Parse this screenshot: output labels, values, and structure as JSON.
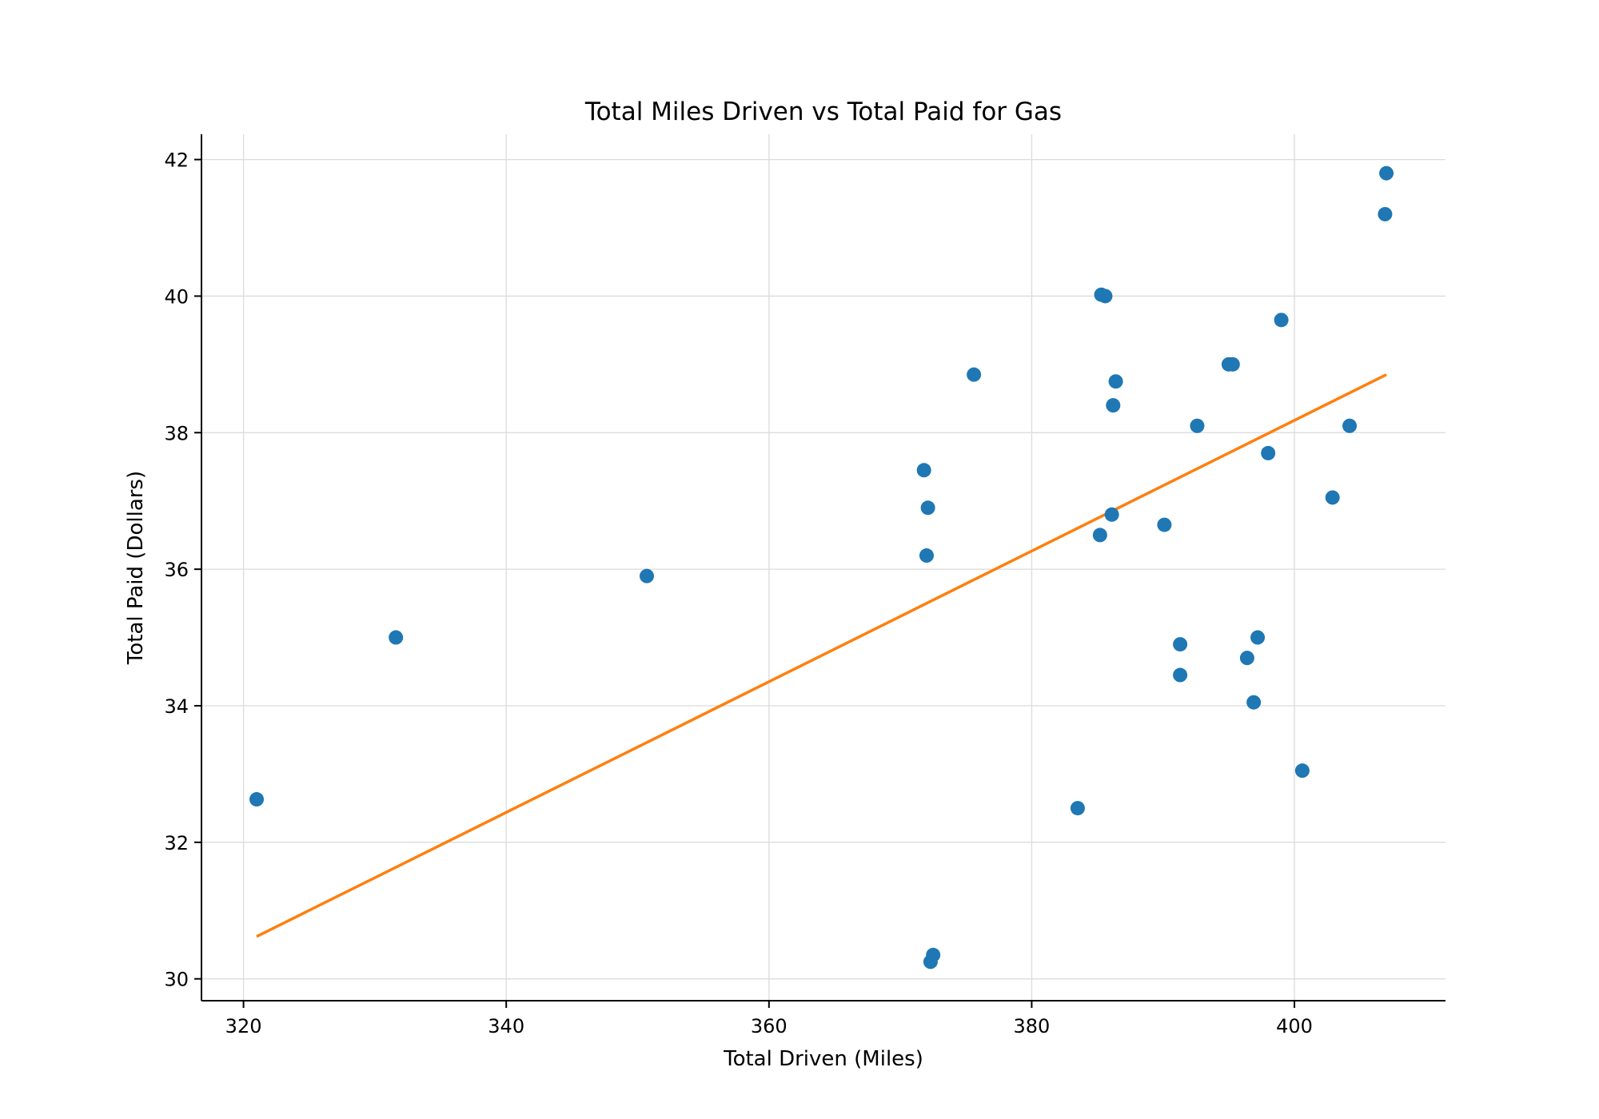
{
  "chart_data": {
    "type": "scatter",
    "title": "Total Miles Driven vs Total Paid for Gas",
    "xlabel": "Total Driven (Miles)",
    "ylabel": "Total Paid (Dollars)",
    "xlim": [
      316.8,
      411.5
    ],
    "ylim": [
      29.68,
      42.37
    ],
    "xticks": [
      320,
      340,
      360,
      380,
      400
    ],
    "yticks": [
      30,
      32,
      34,
      36,
      38,
      40,
      42
    ],
    "grid": true,
    "colors": {
      "points": "#1f77b4",
      "fit_line": "#ff7f0e"
    },
    "points": [
      {
        "x": 321.0,
        "y": 32.63
      },
      {
        "x": 331.6,
        "y": 35.0
      },
      {
        "x": 350.7,
        "y": 35.9
      },
      {
        "x": 371.8,
        "y": 37.45
      },
      {
        "x": 372.1,
        "y": 36.9
      },
      {
        "x": 372.0,
        "y": 36.2
      },
      {
        "x": 372.3,
        "y": 30.25
      },
      {
        "x": 372.5,
        "y": 30.35
      },
      {
        "x": 375.6,
        "y": 38.85
      },
      {
        "x": 383.5,
        "y": 32.5
      },
      {
        "x": 385.2,
        "y": 36.5
      },
      {
        "x": 385.3,
        "y": 40.02
      },
      {
        "x": 385.6,
        "y": 40.0
      },
      {
        "x": 386.1,
        "y": 36.8
      },
      {
        "x": 386.2,
        "y": 38.4
      },
      {
        "x": 386.4,
        "y": 38.75
      },
      {
        "x": 390.1,
        "y": 36.65
      },
      {
        "x": 391.3,
        "y": 34.9
      },
      {
        "x": 391.3,
        "y": 34.45
      },
      {
        "x": 392.6,
        "y": 38.1
      },
      {
        "x": 395.0,
        "y": 39.0
      },
      {
        "x": 395.3,
        "y": 39.0
      },
      {
        "x": 396.4,
        "y": 34.7
      },
      {
        "x": 396.9,
        "y": 34.05
      },
      {
        "x": 397.2,
        "y": 35.0
      },
      {
        "x": 398.0,
        "y": 37.7
      },
      {
        "x": 399.0,
        "y": 39.65
      },
      {
        "x": 400.6,
        "y": 33.05
      },
      {
        "x": 402.9,
        "y": 37.05
      },
      {
        "x": 404.2,
        "y": 38.1
      },
      {
        "x": 406.9,
        "y": 41.2
      },
      {
        "x": 407.0,
        "y": 41.8
      }
    ],
    "fit_line": [
      {
        "x": 321.0,
        "y": 30.62
      },
      {
        "x": 407.0,
        "y": 38.85
      }
    ]
  }
}
